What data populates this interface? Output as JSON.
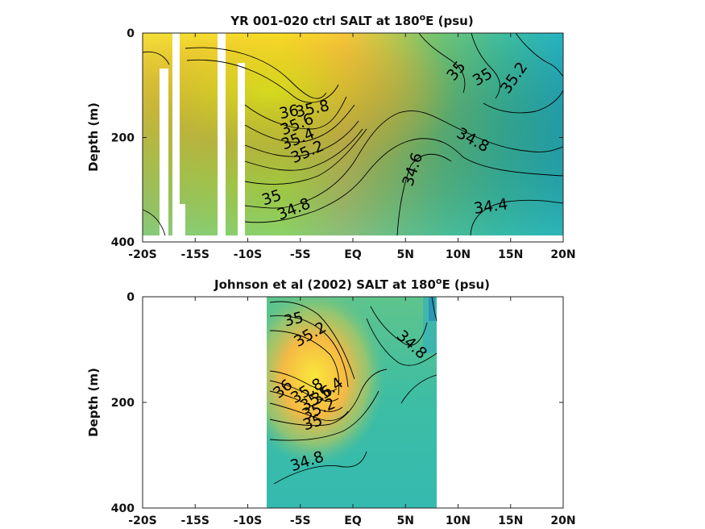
{
  "chart_data": [
    {
      "type": "contour",
      "title": "YR 001-020 ctrl SALT at 180",
      "title_sup": "o",
      "title_suffix": "E (psu)",
      "xlabel": "",
      "ylabel": "Depth (m)",
      "x_ticks": [
        "-20S",
        "-15S",
        "-10S",
        "-5S",
        "EQ",
        "5N",
        "10N",
        "15N",
        "20N"
      ],
      "x_tick_values": [
        -20,
        -15,
        -10,
        -5,
        0,
        5,
        10,
        15,
        20
      ],
      "y_ticks": [
        "0",
        "200",
        "400"
      ],
      "y_tick_values": [
        0,
        200,
        400
      ],
      "xlim": [
        -20,
        20
      ],
      "ylim": [
        400,
        0
      ],
      "colormap": "parula",
      "contour_labels": [
        {
          "text": "36",
          "x": -5.7,
          "y": 148
        },
        {
          "text": "35.8",
          "x": -3.5,
          "y": 145
        },
        {
          "text": "35.6",
          "x": -5.0,
          "y": 168
        },
        {
          "text": "35.4",
          "x": -5.0,
          "y": 188
        },
        {
          "text": "35.2",
          "x": -4.2,
          "y": 212
        },
        {
          "text": "35",
          "x": -7.5,
          "y": 316
        },
        {
          "text": "34.8",
          "x": -5.6,
          "y": 340
        },
        {
          "text": "34.6",
          "x": 5.6,
          "y": 257
        },
        {
          "text": "34.8",
          "x": 11.2,
          "y": 208
        },
        {
          "text": "35",
          "x": 10.0,
          "y": 75
        },
        {
          "text": "35",
          "x": 12.5,
          "y": 92
        },
        {
          "text": "35.2",
          "x": 15.5,
          "y": 85
        },
        {
          "text": "34.4",
          "x": 13.0,
          "y": 339
        }
      ],
      "missing_columns_lon": [
        [
          -17.5,
          -16.8
        ],
        [
          -15.8,
          -15.2
        ],
        [
          -11.8,
          -11.0
        ],
        [
          -10.2,
          -9.5
        ]
      ]
    },
    {
      "type": "contour",
      "title": "Johnson et al (2002) SALT at 180",
      "title_sup": "o",
      "title_suffix": "E (psu)",
      "xlabel": "",
      "ylabel": "Depth (m)",
      "x_ticks": [
        "-20S",
        "-15S",
        "-10S",
        "-5S",
        "EQ",
        "5N",
        "10N",
        "15N",
        "20N"
      ],
      "x_tick_values": [
        -20,
        -15,
        -10,
        -5,
        0,
        5,
        10,
        15,
        20
      ],
      "y_ticks": [
        "0",
        "200",
        "400"
      ],
      "y_tick_values": [
        0,
        200,
        400
      ],
      "xlim": [
        -20,
        20
      ],
      "ylim": [
        400,
        0
      ],
      "data_extent_lon": [
        -8,
        8
      ],
      "colormap": "parula",
      "contour_labels": [
        {
          "text": "35",
          "x": -5.4,
          "y": 80
        },
        {
          "text": "35.2",
          "x": -4.0,
          "y": 125
        },
        {
          "text": "34.8",
          "x": 5.2,
          "y": 170
        },
        {
          "text": "36",
          "x": -6.5,
          "y": 340
        },
        {
          "text": "35.8",
          "x": -4.5,
          "y": 363
        },
        {
          "text": "35.6",
          "x": -3.6,
          "y": 380
        },
        {
          "text": "35.4",
          "x": -2.5,
          "y": 400
        },
        {
          "text": "35.2",
          "x": -3.3,
          "y": 423
        },
        {
          "text": "35",
          "x": -4.5,
          "y": 446
        },
        {
          "text": "34.8",
          "x": -6.0,
          "y": 605
        }
      ]
    }
  ]
}
